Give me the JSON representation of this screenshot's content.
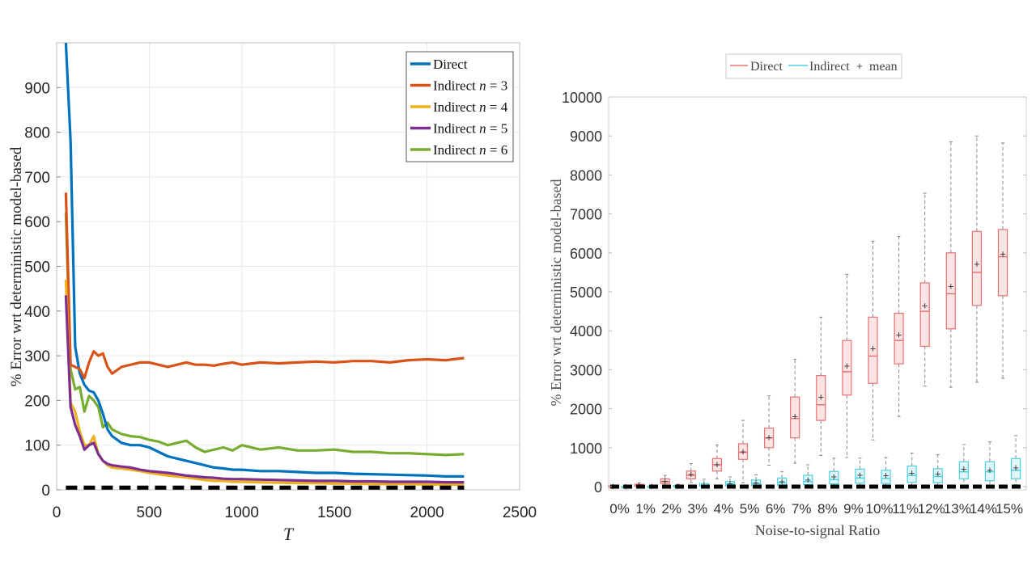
{
  "chart_data": [
    {
      "type": "line",
      "title": "",
      "xlabel": "T",
      "ylabel": "% Error wrt deterministic model-based",
      "xlim": [
        0,
        2500
      ],
      "ylim": [
        0,
        1000
      ],
      "xticks": [
        0,
        500,
        1000,
        1500,
        2000,
        2500
      ],
      "yticks": [
        0,
        100,
        200,
        300,
        400,
        500,
        600,
        700,
        800,
        900
      ],
      "grid": true,
      "legend_position": "top-right",
      "x": [
        50,
        75,
        100,
        125,
        150,
        175,
        200,
        225,
        250,
        275,
        300,
        350,
        400,
        450,
        500,
        550,
        600,
        650,
        700,
        750,
        800,
        850,
        900,
        950,
        1000,
        1100,
        1200,
        1300,
        1400,
        1500,
        1600,
        1700,
        1800,
        1900,
        2000,
        2100,
        2200
      ],
      "series": [
        {
          "name": "Direct",
          "color": "#0072BD",
          "values": [
            1000,
            780,
            320,
            260,
            235,
            222,
            218,
            200,
            170,
            135,
            120,
            105,
            100,
            100,
            95,
            85,
            75,
            70,
            65,
            60,
            55,
            50,
            48,
            45,
            45,
            42,
            42,
            40,
            38,
            38,
            36,
            35,
            34,
            33,
            32,
            30,
            30
          ]
        },
        {
          "name": "Indirect n = 3",
          "color": "#D95319",
          "values": [
            665,
            280,
            275,
            270,
            250,
            285,
            310,
            300,
            305,
            275,
            260,
            275,
            280,
            285,
            285,
            280,
            275,
            280,
            285,
            280,
            280,
            278,
            282,
            285,
            280,
            285,
            283,
            285,
            287,
            285,
            288,
            288,
            285,
            290,
            292,
            290,
            295
          ]
        },
        {
          "name": "Indirect n = 4",
          "color": "#EDB120",
          "values": [
            470,
            195,
            175,
            130,
            100,
            100,
            120,
            80,
            65,
            55,
            50,
            48,
            45,
            42,
            38,
            35,
            32,
            30,
            28,
            25,
            22,
            20,
            20,
            18,
            18,
            17,
            16,
            15,
            15,
            14,
            14,
            13,
            13,
            13,
            12,
            12,
            12
          ]
        },
        {
          "name": "Indirect n = 5",
          "color": "#7E2F8E",
          "values": [
            435,
            185,
            145,
            120,
            90,
            100,
            105,
            80,
            65,
            58,
            55,
            52,
            50,
            45,
            42,
            40,
            38,
            35,
            32,
            30,
            28,
            27,
            25,
            24,
            24,
            23,
            22,
            21,
            20,
            20,
            19,
            19,
            18,
            18,
            18,
            17,
            17
          ]
        },
        {
          "name": "Indirect n = 6",
          "color": "#77AC30",
          "values": [
            620,
            270,
            225,
            230,
            175,
            210,
            200,
            185,
            140,
            150,
            135,
            125,
            120,
            118,
            112,
            108,
            100,
            105,
            110,
            95,
            85,
            90,
            95,
            88,
            100,
            90,
            95,
            88,
            88,
            90,
            85,
            85,
            82,
            82,
            80,
            78,
            80
          ]
        },
        {
          "name": "reference",
          "color": "#000000",
          "style": "dashed",
          "values": [
            5,
            5,
            5,
            5,
            5,
            5,
            5,
            5,
            5,
            5,
            5,
            5,
            5,
            5,
            5,
            5,
            5,
            5,
            5,
            5,
            5,
            5,
            5,
            5,
            5,
            5,
            5,
            5,
            5,
            5,
            5,
            5,
            5,
            5,
            5,
            5,
            5
          ]
        }
      ]
    },
    {
      "type": "box",
      "title": "",
      "xlabel": "Noise-to-signal Ratio",
      "ylabel": "% Error wrt deterministic model-based",
      "ylim": [
        0,
        10000
      ],
      "yticks": [
        0,
        1000,
        2000,
        3000,
        4000,
        5000,
        6000,
        7000,
        8000,
        9000,
        10000
      ],
      "categories": [
        "0%",
        "1%",
        "2%",
        "3%",
        "4%",
        "5%",
        "6%",
        "7%",
        "8%",
        "9%",
        "10%",
        "11%",
        "12%",
        "13%",
        "14%",
        "15%"
      ],
      "legend": [
        "Direct",
        "Indirect",
        "mean"
      ],
      "legend_position": "top",
      "series": [
        {
          "name": "Direct",
          "color": "#E57373",
          "fill": "#FCE4E4",
          "boxes": [
            {
              "min": 0,
              "q1": 0,
              "median": 0,
              "q3": 20,
              "max": 40,
              "mean": 10
            },
            {
              "min": 0,
              "q1": 10,
              "median": 30,
              "q3": 60,
              "max": 100,
              "mean": 30
            },
            {
              "min": 20,
              "q1": 80,
              "median": 130,
              "q3": 200,
              "max": 290,
              "mean": 150
            },
            {
              "min": 100,
              "q1": 200,
              "median": 290,
              "q3": 400,
              "max": 590,
              "mean": 320
            },
            {
              "min": 200,
              "q1": 400,
              "median": 560,
              "q3": 720,
              "max": 1070,
              "mean": 570
            },
            {
              "min": 100,
              "q1": 700,
              "median": 880,
              "q3": 1100,
              "max": 1700,
              "mean": 900
            },
            {
              "min": 550,
              "q1": 1000,
              "median": 1250,
              "q3": 1500,
              "max": 2330,
              "mean": 1270
            },
            {
              "min": 600,
              "q1": 1250,
              "median": 1750,
              "q3": 2300,
              "max": 3270,
              "mean": 1810
            },
            {
              "min": 800,
              "q1": 1700,
              "median": 2100,
              "q3": 2850,
              "max": 4350,
              "mean": 2300
            },
            {
              "min": 750,
              "q1": 2350,
              "median": 2950,
              "q3": 3750,
              "max": 5450,
              "mean": 3100
            },
            {
              "min": 1200,
              "q1": 2650,
              "median": 3350,
              "q3": 4350,
              "max": 6300,
              "mean": 3550
            },
            {
              "min": 1800,
              "q1": 3150,
              "median": 3750,
              "q3": 4450,
              "max": 6420,
              "mean": 3900
            },
            {
              "min": 2580,
              "q1": 3600,
              "median": 4500,
              "q3": 5230,
              "max": 7530,
              "mean": 4650
            },
            {
              "min": 2550,
              "q1": 4050,
              "median": 4950,
              "q3": 6000,
              "max": 8850,
              "mean": 5150
            },
            {
              "min": 2680,
              "q1": 4650,
              "median": 5500,
              "q3": 6550,
              "max": 9000,
              "mean": 5720
            },
            {
              "min": 2780,
              "q1": 4900,
              "median": 5900,
              "q3": 6600,
              "max": 8820,
              "mean": 5980
            }
          ]
        },
        {
          "name": "Indirect",
          "color": "#4DD0E1",
          "fill": "#E0F7FA",
          "boxes": [
            {
              "min": 0,
              "q1": 0,
              "median": 0,
              "q3": 10,
              "max": 20,
              "mean": 5
            },
            {
              "min": 0,
              "q1": 0,
              "median": 5,
              "q3": 15,
              "max": 30,
              "mean": 8
            },
            {
              "min": 0,
              "q1": 0,
              "median": 10,
              "q3": 30,
              "max": 60,
              "mean": 15
            },
            {
              "min": 0,
              "q1": 10,
              "median": 30,
              "q3": 80,
              "max": 190,
              "mean": 40
            },
            {
              "min": 0,
              "q1": 20,
              "median": 60,
              "q3": 130,
              "max": 250,
              "mean": 80
            },
            {
              "min": 0,
              "q1": 30,
              "median": 80,
              "q3": 170,
              "max": 300,
              "mean": 100
            },
            {
              "min": 0,
              "q1": 40,
              "median": 100,
              "q3": 220,
              "max": 380,
              "mean": 130
            },
            {
              "min": 0,
              "q1": 50,
              "median": 130,
              "q3": 290,
              "max": 560,
              "mean": 180
            },
            {
              "min": 0,
              "q1": 70,
              "median": 180,
              "q3": 390,
              "max": 730,
              "mean": 260
            },
            {
              "min": 0,
              "q1": 90,
              "median": 220,
              "q3": 450,
              "max": 730,
              "mean": 300
            },
            {
              "min": 0,
              "q1": 80,
              "median": 210,
              "q3": 420,
              "max": 750,
              "mean": 290
            },
            {
              "min": 0,
              "q1": 110,
              "median": 290,
              "q3": 530,
              "max": 860,
              "mean": 350
            },
            {
              "min": 0,
              "q1": 100,
              "median": 260,
              "q3": 460,
              "max": 820,
              "mean": 330
            },
            {
              "min": 20,
              "q1": 200,
              "median": 380,
              "q3": 640,
              "max": 1080,
              "mean": 460
            },
            {
              "min": 0,
              "q1": 150,
              "median": 380,
              "q3": 640,
              "max": 1150,
              "mean": 430
            },
            {
              "min": 50,
              "q1": 200,
              "median": 420,
              "q3": 720,
              "max": 1310,
              "mean": 490
            }
          ]
        },
        {
          "name": "reference",
          "color": "#000000",
          "style": "dashed",
          "value": 0
        }
      ]
    }
  ],
  "left": {
    "legend": [
      "Direct",
      "Indirect n = 3",
      "Indirect n = 4",
      "Indirect n = 5",
      "Indirect n = 6"
    ],
    "xlabel": "T",
    "ylabel": "% Error wrt deterministic model-based"
  },
  "right": {
    "legend": {
      "direct": "Direct",
      "indirect": "Indirect",
      "mean_symbol": "+",
      "mean": "mean"
    },
    "xlabel": "Noise-to-signal Ratio",
    "ylabel": "% Error wrt deterministic model-based"
  }
}
